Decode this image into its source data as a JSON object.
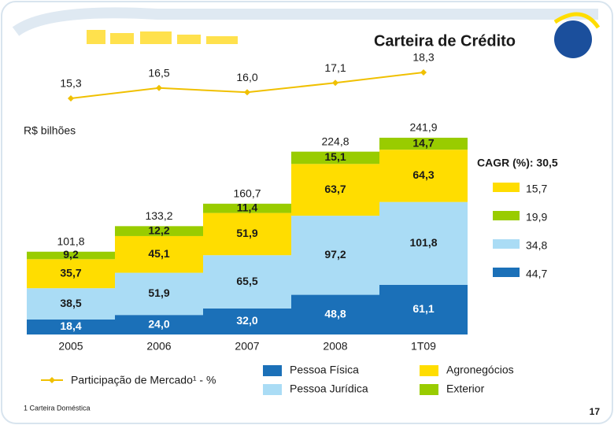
{
  "chart_data": [
    {
      "type": "bar",
      "stacked": true,
      "title": "Carteira de Crédito",
      "unit_label": "R$ bilhões",
      "categories": [
        "2005",
        "2006",
        "2007",
        "2008",
        "1T09"
      ],
      "series": [
        {
          "name": "Pessoa Física",
          "color": "#1b70b8",
          "text_color": "#ffffff",
          "values": [
            18.4,
            24.0,
            32.0,
            48.8,
            61.1
          ],
          "value_labels": [
            "18,4",
            "24,0",
            "32,0",
            "48,8",
            "61,1"
          ],
          "cagr": 44.7,
          "cagr_label": "44,7"
        },
        {
          "name": "Pessoa Jurídica",
          "color": "#aadcf5",
          "text_color": "#1a1a1a",
          "values": [
            38.5,
            51.9,
            65.5,
            97.2,
            101.8
          ],
          "value_labels": [
            "38,5",
            "51,9",
            "65,5",
            "97,2",
            "101,8"
          ],
          "cagr": 34.8,
          "cagr_label": "34,8"
        },
        {
          "name": "Agronegócios",
          "color": "#ffdd00",
          "text_color": "#1a1a1a",
          "values": [
            35.7,
            45.1,
            51.9,
            63.7,
            64.3
          ],
          "value_labels": [
            "35,7",
            "45,1",
            "51,9",
            "63,7",
            "64,3"
          ],
          "cagr": 15.7,
          "cagr_label": "15,7"
        },
        {
          "name": "Exterior",
          "color": "#99cc00",
          "text_color": "#1a1a1a",
          "values": [
            9.2,
            12.2,
            11.4,
            15.1,
            14.7
          ],
          "value_labels": [
            "9,2",
            "12,2",
            "11,4",
            "15,1",
            "14,7"
          ],
          "cagr": 19.9,
          "cagr_label": "19,9"
        }
      ],
      "totals": [
        101.8,
        133.2,
        160.7,
        224.8,
        241.9
      ],
      "total_labels": [
        "101,8",
        "133,2",
        "160,7",
        "224,8",
        "241,9"
      ],
      "cagr_title": "CAGR (%): 30,5"
    },
    {
      "type": "line",
      "series": [
        {
          "name": "Participação de Mercado¹ - %",
          "color": "#f0c000",
          "values": [
            15.3,
            16.5,
            16.0,
            17.1,
            18.3
          ],
          "value_labels": [
            "15,3",
            "16,5",
            "16,0",
            "17,1",
            "18,3"
          ]
        }
      ]
    }
  ],
  "footnote": "1 Carteira Doméstica",
  "page_number": "17"
}
